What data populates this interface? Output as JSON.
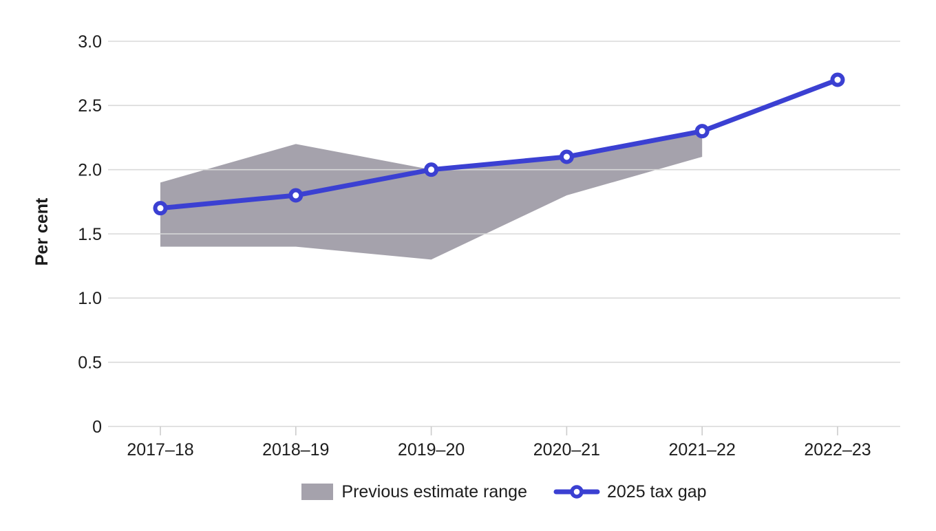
{
  "chart_data": {
    "type": "line",
    "title": "",
    "ylabel": "Per cent",
    "xlabel": "",
    "categories": [
      "2017–18",
      "2018–19",
      "2019–20",
      "2020–21",
      "2021–22",
      "2022–23"
    ],
    "y_ticks": [
      0,
      0.5,
      1.0,
      1.5,
      2.0,
      2.5,
      3.0
    ],
    "y_tick_labels": [
      "0",
      "0.5",
      "1.0",
      "1.5",
      "2.0",
      "2.5",
      "3.0"
    ],
    "ylim": [
      0,
      3.0
    ],
    "grid": "horizontal",
    "legend_position": "bottom",
    "series": [
      {
        "name": "Previous estimate range",
        "type": "band",
        "color": "#A5A2AC",
        "upper": [
          1.9,
          2.2,
          2.0,
          2.1,
          2.3,
          null
        ],
        "lower": [
          1.4,
          1.4,
          1.3,
          1.8,
          2.1,
          null
        ]
      },
      {
        "name": "2025 tax gap",
        "type": "line",
        "color": "#3B40D2",
        "marker": "circle-open",
        "values": [
          1.7,
          1.8,
          2.0,
          2.1,
          2.3,
          2.7
        ]
      }
    ]
  },
  "colors": {
    "accent_blue": "#3B40D2",
    "band_gray": "#A5A2AC",
    "gridline": "#D9D9D9",
    "x_tick": "#CCCCCC",
    "text": "#1D1D1D",
    "background": "#FFFFFF"
  }
}
